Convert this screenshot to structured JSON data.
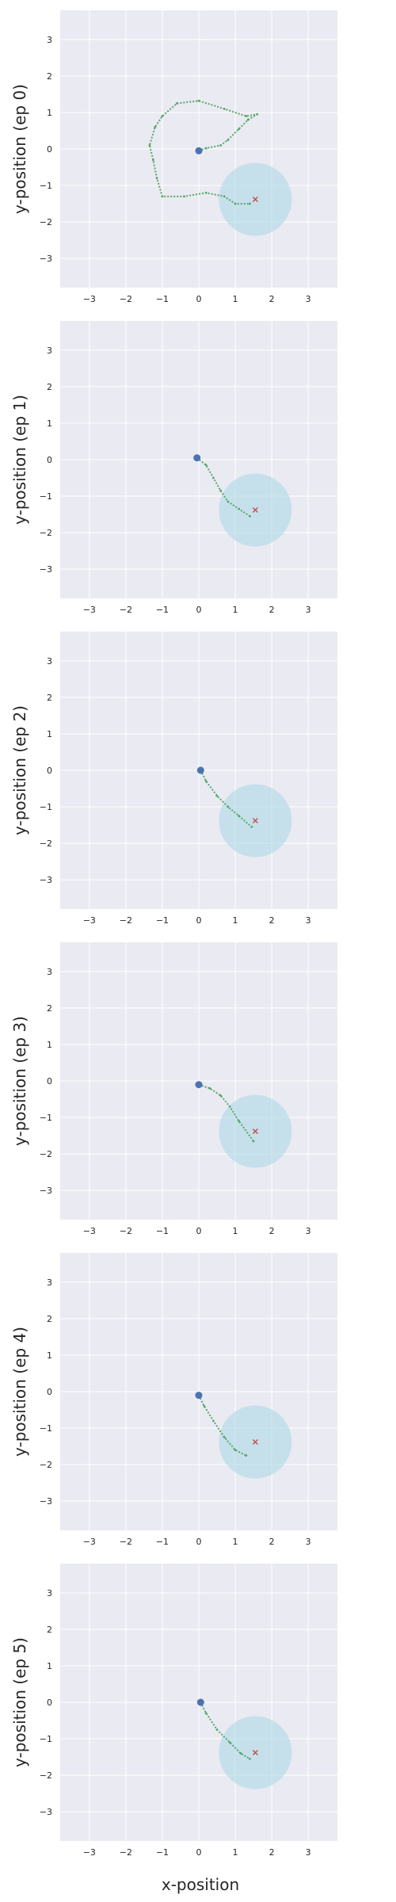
{
  "chart_data": {
    "type": "scatter",
    "xlabel": "x-position",
    "xlim": [
      -3.8,
      3.8
    ],
    "ylim": [
      -3.8,
      3.8
    ],
    "x_ticks": [
      -3,
      -2,
      -1,
      0,
      1,
      2,
      3
    ],
    "y_ticks": [
      -3,
      -2,
      -1,
      0,
      1,
      2,
      3
    ],
    "grid": true,
    "colors": {
      "background": "#eaeaf2",
      "grid": "#ffffff",
      "trajectory": "#55a868",
      "start_marker": "#4c72b0",
      "goal_marker": "#c44e52",
      "goal_region": "#add8e6"
    },
    "goal": {
      "x": 1.55,
      "y": -1.38,
      "radius": 1.0
    },
    "panels": [
      {
        "ylabel": "y-position (ep 0)",
        "start": {
          "x": 0.0,
          "y": -0.05
        },
        "trajectory": [
          [
            0.0,
            -0.05
          ],
          [
            0.2,
            0.02
          ],
          [
            0.6,
            0.1
          ],
          [
            0.8,
            0.25
          ],
          [
            1.1,
            0.55
          ],
          [
            1.35,
            0.8
          ],
          [
            1.6,
            0.95
          ],
          [
            1.3,
            0.9
          ],
          [
            0.7,
            1.1
          ],
          [
            0.0,
            1.32
          ],
          [
            -0.6,
            1.25
          ],
          [
            -1.0,
            0.9
          ],
          [
            -1.2,
            0.6
          ],
          [
            -1.35,
            0.1
          ],
          [
            -1.25,
            -0.3
          ],
          [
            -1.15,
            -0.8
          ],
          [
            -1.0,
            -1.3
          ],
          [
            -0.4,
            -1.3
          ],
          [
            0.2,
            -1.2
          ],
          [
            0.7,
            -1.3
          ],
          [
            1.0,
            -1.5
          ],
          [
            1.4,
            -1.5
          ]
        ]
      },
      {
        "ylabel": "y-position (ep 1)",
        "start": {
          "x": -0.05,
          "y": 0.05
        },
        "trajectory": [
          [
            -0.05,
            0.05
          ],
          [
            0.2,
            -0.15
          ],
          [
            0.4,
            -0.5
          ],
          [
            0.6,
            -0.85
          ],
          [
            0.8,
            -1.15
          ],
          [
            1.1,
            -1.35
          ],
          [
            1.4,
            -1.55
          ]
        ]
      },
      {
        "ylabel": "y-position (ep 2)",
        "start": {
          "x": 0.05,
          "y": 0.0
        },
        "trajectory": [
          [
            0.05,
            0.0
          ],
          [
            0.2,
            -0.3
          ],
          [
            0.5,
            -0.7
          ],
          [
            0.8,
            -1.0
          ],
          [
            1.1,
            -1.25
          ],
          [
            1.45,
            -1.55
          ]
        ]
      },
      {
        "ylabel": "y-position (ep 3)",
        "start": {
          "x": 0.0,
          "y": -0.1
        },
        "trajectory": [
          [
            0.0,
            -0.1
          ],
          [
            0.3,
            -0.2
          ],
          [
            0.6,
            -0.4
          ],
          [
            0.85,
            -0.7
          ],
          [
            1.1,
            -1.1
          ],
          [
            1.5,
            -1.65
          ]
        ]
      },
      {
        "ylabel": "y-position (ep 4)",
        "start": {
          "x": 0.0,
          "y": -0.1
        },
        "trajectory": [
          [
            0.0,
            -0.1
          ],
          [
            0.15,
            -0.4
          ],
          [
            0.4,
            -0.8
          ],
          [
            0.7,
            -1.25
          ],
          [
            1.0,
            -1.6
          ],
          [
            1.3,
            -1.75
          ]
        ]
      },
      {
        "ylabel": "y-position (ep 5)",
        "start": {
          "x": 0.05,
          "y": 0.0
        },
        "trajectory": [
          [
            0.05,
            0.0
          ],
          [
            0.2,
            -0.3
          ],
          [
            0.5,
            -0.75
          ],
          [
            0.85,
            -1.1
          ],
          [
            1.15,
            -1.4
          ],
          [
            1.4,
            -1.55
          ]
        ]
      }
    ]
  }
}
